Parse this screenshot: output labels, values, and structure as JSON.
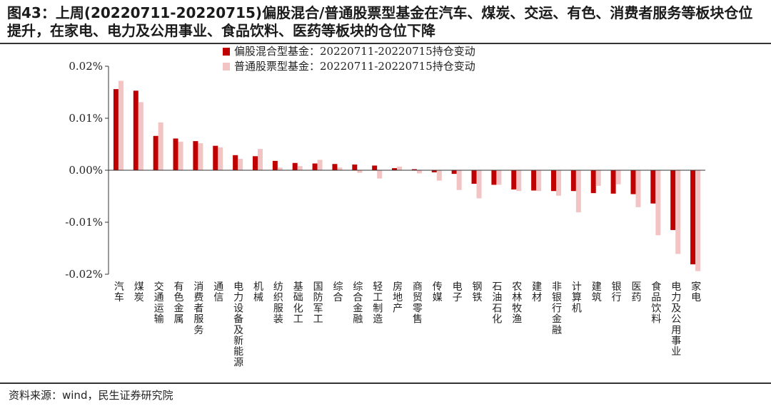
{
  "header": {
    "title": "图43：上周(20220711-20220715)偏股混合/普通股票型基金在汽车、煤炭、交运、有色、消费者服务等板块仓位提升，在家电、电力及公用事业、食品饮料、医药等板块的仓位下降"
  },
  "footer": {
    "source": "资料来源：wind，民生证券研究院"
  },
  "chart_data": {
    "type": "bar",
    "title": "",
    "xlabel": "",
    "ylabel": "",
    "ylim": [
      -0.0002,
      0.0002
    ],
    "yticks": [
      0.0002,
      0.0001,
      0.0,
      -0.0001,
      -0.0002
    ],
    "ytick_labels": [
      "0.02%",
      "0.01%",
      "0.00%",
      "-0.01%",
      "-0.02%"
    ],
    "grid": false,
    "legend_position": "top",
    "categories": [
      "汽车",
      "煤炭",
      "交通运输",
      "有色金属",
      "消费者服务",
      "通信",
      "电力设备及新能源",
      "机械",
      "纺织服装",
      "基础化工",
      "国防军工",
      "综合",
      "综合金融",
      "轻工制造",
      "房地产",
      "商贸零售",
      "传媒",
      "电子",
      "钢铁",
      "石油石化",
      "农林牧渔",
      "建材",
      "非银行金融",
      "计算机",
      "建筑",
      "银行",
      "医药",
      "食品饮料",
      "电力及公用事业",
      "家电"
    ],
    "series": [
      {
        "name": "偏股混合型基金：20220711-20220715持仓变动",
        "color": "#c00000",
        "values": [
          0.000156,
          0.000153,
          6.6e-05,
          6.1e-05,
          5.6e-05,
          4.7e-05,
          2.9e-05,
          2.7e-05,
          1.8e-05,
          1.4e-05,
          1.3e-05,
          1.2e-05,
          1.1e-05,
          9e-06,
          4e-06,
          2e-06,
          -4e-06,
          -7e-06,
          -2.6e-05,
          -2.8e-05,
          -3.7e-05,
          -3.9e-05,
          -4e-05,
          -4e-05,
          -4.4e-05,
          -4.5e-05,
          -4.6e-05,
          -6.4e-05,
          -0.000115,
          -0.000181
        ]
      },
      {
        "name": "普通股票型基金：20220711-20220715持仓变动",
        "color": "#f2c4c4",
        "values": [
          0.000172,
          0.000131,
          9.2e-05,
          5.5e-05,
          5.2e-05,
          4.4e-05,
          2.2e-05,
          4.1e-05,
          5e-06,
          8e-06,
          2e-05,
          5e-06,
          -5e-06,
          -1.6e-05,
          7e-06,
          -6e-06,
          -2e-05,
          -3.8e-05,
          -5.4e-05,
          -2.8e-05,
          -4e-05,
          -4e-05,
          -4.9e-05,
          -8.1e-05,
          -3e-05,
          -2.7e-05,
          -7.1e-05,
          -0.000125,
          -0.000161,
          -0.000194
        ]
      }
    ]
  }
}
